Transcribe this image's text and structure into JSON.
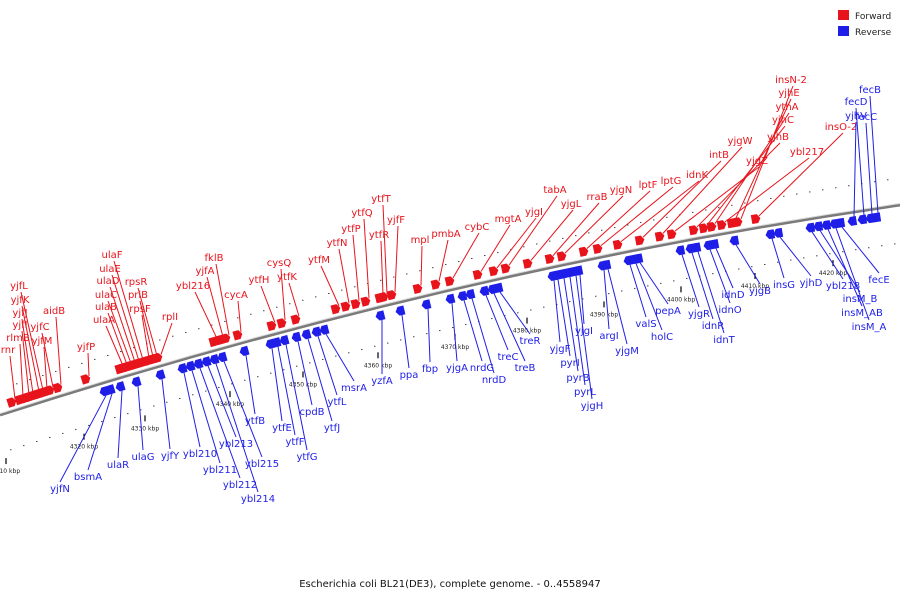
{
  "legend": {
    "forward_label": "Forward",
    "reverse_label": "Reverse",
    "forward_color": "#e8141c",
    "reverse_color": "#1e1ee8"
  },
  "caption": "Escherichia coli BL21(DE3), complete genome. - 0..4558947",
  "scale_ticks": [
    "4310 kbp",
    "4320 kbp",
    "4330 kbp",
    "4340 kbp",
    "4350 kbp",
    "4360 kbp",
    "4370 kbp",
    "4380 kbp",
    "4390 kbp",
    "4400 kbp",
    "4410 kbp",
    "4420 kbp"
  ],
  "forward_genes": [
    "rnr",
    "rlmB",
    "yjfI",
    "yjfJ",
    "yjfK",
    "yjfL",
    "yjfM",
    "yjfC",
    "aidB",
    "yjfP",
    "ulaA",
    "ulaB",
    "ulaC",
    "ulaD",
    "ulaE",
    "ulaF",
    "rpsF",
    "priB",
    "rpsR",
    "rplI",
    "ybl216",
    "yjfA",
    "fklB",
    "cycA",
    "ytfH",
    "cysQ",
    "ytfK",
    "ytfM",
    "ytfN",
    "ytfP",
    "ytfQ",
    "ytfR",
    "ytfT",
    "yjfF",
    "mpl",
    "pmbA",
    "cybC",
    "mgtA",
    "yjgI",
    "tabA",
    "yjgL",
    "rraB",
    "yjgN",
    "lptF",
    "lptG",
    "idnK",
    "intB",
    "yjgW",
    "yjgZ",
    "yjhB",
    "yjhC",
    "ythA",
    "ybl217",
    "yjhE",
    "insN-2",
    "insO-2"
  ],
  "reverse_genes": [
    "yjfN",
    "bsmA",
    "ulaR",
    "ulaG",
    "yjfY",
    "ybl210",
    "ybl211",
    "ybl212",
    "ybl213",
    "ybl214",
    "ybl215",
    "ytfB",
    "ytfE",
    "ytfF",
    "ytfG",
    "cpdB",
    "ytfJ",
    "ytfL",
    "msrA",
    "yzfA",
    "ppa",
    "fbp",
    "yjgA",
    "nrdG",
    "nrdD",
    "treC",
    "treB",
    "treR",
    "yjgF",
    "pyrI",
    "pyrB",
    "pyrL",
    "yjgH",
    "yjgI",
    "argI",
    "yjgM",
    "valS",
    "holC",
    "pepA",
    "yjgR",
    "idnR",
    "idnT",
    "idnO",
    "idnD",
    "yjgB",
    "insG",
    "yjhD",
    "ybl218",
    "insM_B",
    "insM_AB",
    "insM_A",
    "fecE",
    "yjhV",
    "fecD",
    "fecC",
    "fecB"
  ]
}
